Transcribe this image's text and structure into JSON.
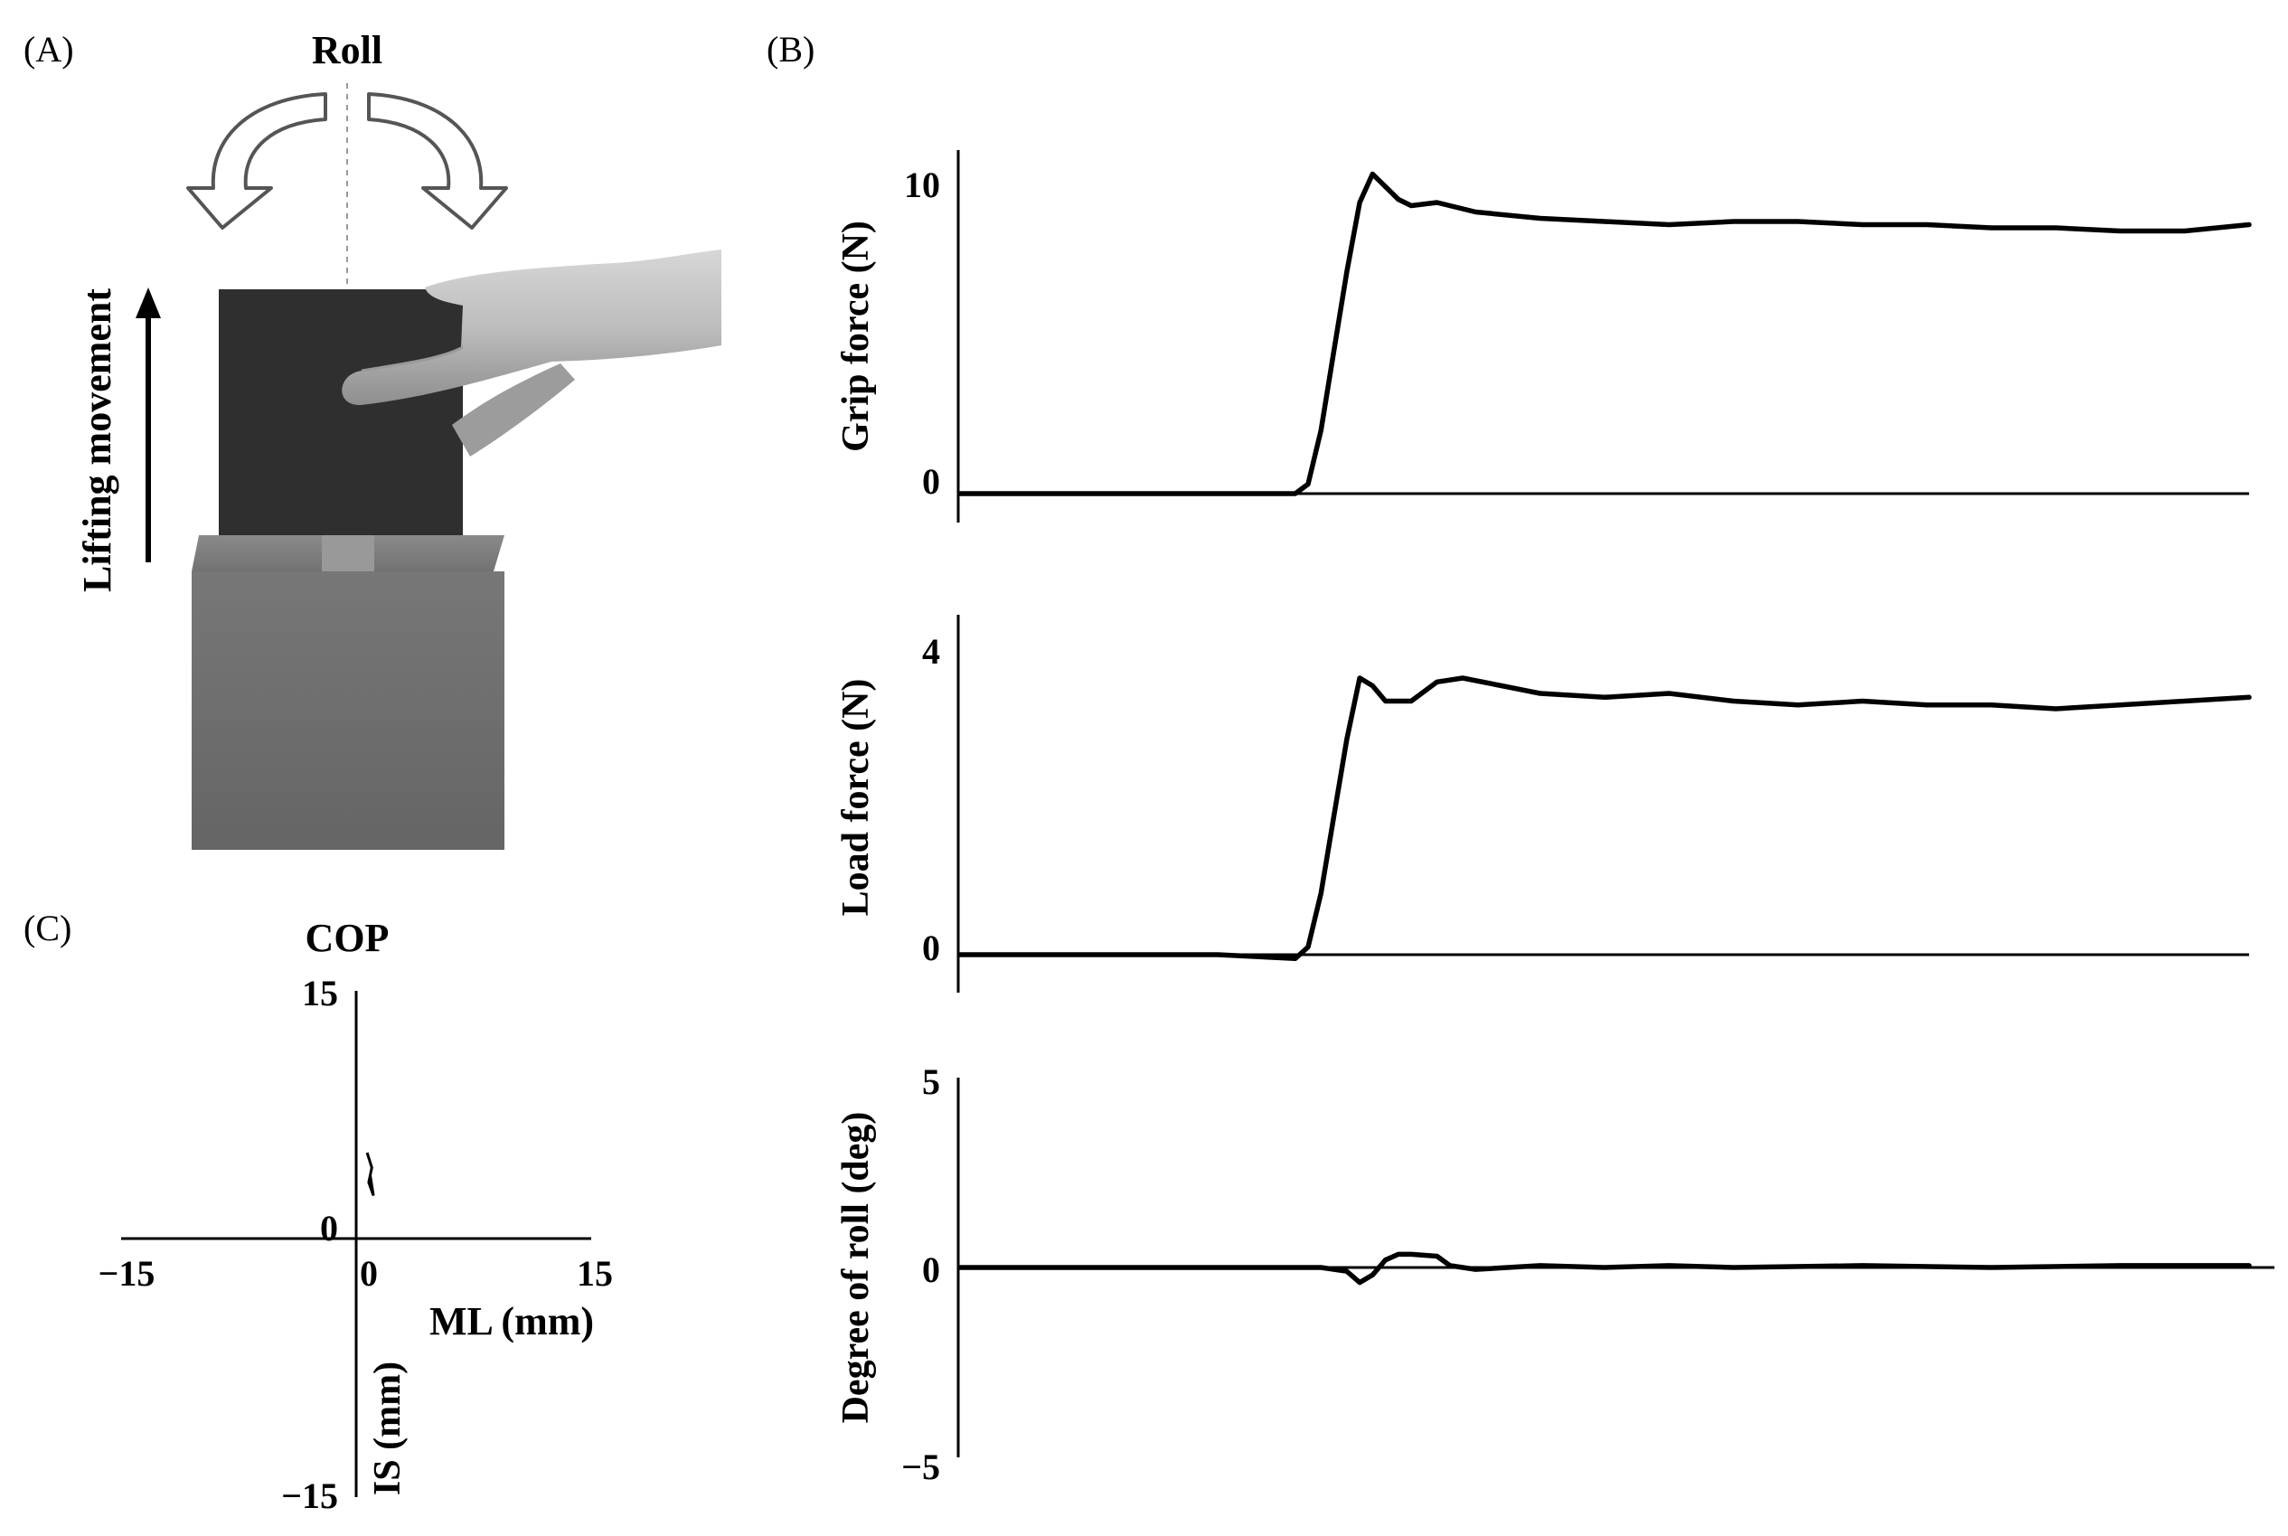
{
  "panels": {
    "a": {
      "letter": "(A)",
      "roll_label": "Roll",
      "lift_label": "Lifting movement"
    },
    "b": {
      "letter": "(B)"
    },
    "c": {
      "letter": "(C)",
      "title": "COP"
    }
  },
  "chart_data": [
    {
      "type": "line",
      "panel": "(B)",
      "ylabel": "Grip force (N)",
      "ylim": [
        0,
        10
      ],
      "yticks": [
        "0",
        "10"
      ],
      "x": [
        0,
        0.1,
        0.2,
        0.26,
        0.27,
        0.28,
        0.29,
        0.3,
        0.31,
        0.32,
        0.33,
        0.34,
        0.35,
        0.37,
        0.4,
        0.45,
        0.5,
        0.55,
        0.6,
        0.65,
        0.7,
        0.75,
        0.8,
        0.85,
        0.9,
        0.95,
        1.0
      ],
      "values": [
        0,
        0,
        0,
        0,
        0.3,
        2.0,
        4.5,
        7.0,
        9.2,
        10.1,
        9.7,
        9.3,
        9.1,
        9.2,
        8.9,
        8.7,
        8.6,
        8.5,
        8.6,
        8.6,
        8.5,
        8.5,
        8.4,
        8.4,
        8.3,
        8.3,
        8.5
      ]
    },
    {
      "type": "line",
      "panel": "(B)",
      "ylabel": "Load force (N)",
      "ylim": [
        0,
        4
      ],
      "yticks": [
        "0",
        "4"
      ],
      "x": [
        0,
        0.1,
        0.2,
        0.26,
        0.27,
        0.28,
        0.29,
        0.3,
        0.31,
        0.32,
        0.33,
        0.34,
        0.35,
        0.37,
        0.39,
        0.42,
        0.45,
        0.5,
        0.55,
        0.6,
        0.65,
        0.7,
        0.75,
        0.8,
        0.85,
        0.9,
        0.95,
        1.0
      ],
      "values": [
        0,
        0,
        0,
        -0.05,
        0.1,
        0.8,
        1.8,
        2.8,
        3.6,
        3.5,
        3.3,
        3.3,
        3.3,
        3.55,
        3.6,
        3.5,
        3.4,
        3.35,
        3.4,
        3.3,
        3.25,
        3.3,
        3.25,
        3.25,
        3.2,
        3.25,
        3.3,
        3.35
      ]
    },
    {
      "type": "line",
      "panel": "(B)",
      "ylabel": "Degree of roll (deg)",
      "ylim": [
        -5,
        5
      ],
      "yticks": [
        "−5",
        "0",
        "5"
      ],
      "x": [
        0,
        0.1,
        0.2,
        0.26,
        0.28,
        0.3,
        0.31,
        0.32,
        0.33,
        0.34,
        0.35,
        0.37,
        0.38,
        0.4,
        0.45,
        0.5,
        0.55,
        0.6,
        0.7,
        0.8,
        0.9,
        1.0
      ],
      "values": [
        0,
        0,
        0,
        0,
        0,
        -0.1,
        -0.4,
        -0.2,
        0.2,
        0.35,
        0.35,
        0.3,
        0.05,
        -0.05,
        0.05,
        0.0,
        0.05,
        0.0,
        0.05,
        0.0,
        0.05,
        0.05
      ]
    },
    {
      "type": "scatter",
      "panel": "(C)",
      "title": "COP",
      "xlabel": "ML (mm)",
      "ylabel": "IS (mm)",
      "xlim": [
        -15,
        15
      ],
      "ylim": [
        -15,
        15
      ],
      "xticks": [
        "−15",
        "0",
        "15"
      ],
      "yticks": [
        "−15",
        "0",
        "15"
      ],
      "x": [
        0.7,
        1.0,
        0.8,
        1.1,
        0.9
      ],
      "y": [
        5.2,
        4.3,
        3.4,
        2.6,
        3.8
      ]
    }
  ]
}
